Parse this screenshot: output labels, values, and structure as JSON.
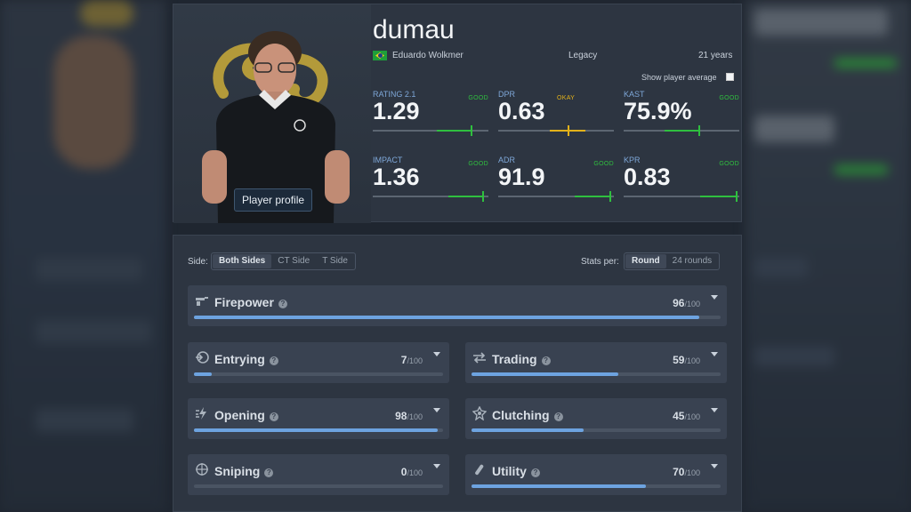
{
  "player": {
    "nickname": "dumau",
    "full_name": "Eduardo Wolkmer",
    "team": "Legacy",
    "age": "21 years",
    "profile_button": "Player profile",
    "show_average_label": "Show player average",
    "show_average_checked": false
  },
  "stats": [
    {
      "label": "RATING 2.1",
      "value": "1.29",
      "rating": "GOOD",
      "level": 0.87
    },
    {
      "label": "DPR",
      "value": "0.63",
      "rating": "OKAY",
      "level": 0.62
    },
    {
      "label": "KAST",
      "value": "75.9%",
      "rating": "GOOD",
      "level": 0.67
    },
    {
      "label": "IMPACT",
      "value": "1.36",
      "rating": "GOOD",
      "level": 0.98
    },
    {
      "label": "ADR",
      "value": "91.9",
      "rating": "GOOD",
      "level": 0.99
    },
    {
      "label": "KPR",
      "value": "0.83",
      "rating": "GOOD",
      "level": 1.0
    }
  ],
  "rating_colors": {
    "GOOD": "#2fbf3f",
    "OKAY": "#e3b21a"
  },
  "filters": {
    "side_label": "Side:",
    "side_options": [
      "Both Sides",
      "CT Side",
      "T Side"
    ],
    "side_selected": "Both Sides",
    "stats_per_label": "Stats per:",
    "per_options": [
      "Round",
      "24 rounds"
    ],
    "per_selected": "Round"
  },
  "categories": [
    {
      "name": "Firepower",
      "icon": "firepower-icon",
      "score": "96",
      "max": "/100",
      "fraction": 0.96
    },
    {
      "name": "Entrying",
      "icon": "entrying-icon",
      "score": "7",
      "max": "/100",
      "fraction": 0.07
    },
    {
      "name": "Trading",
      "icon": "trading-icon",
      "score": "59",
      "max": "/100",
      "fraction": 0.59
    },
    {
      "name": "Opening",
      "icon": "opening-icon",
      "score": "98",
      "max": "/100",
      "fraction": 0.98
    },
    {
      "name": "Clutching",
      "icon": "clutching-icon",
      "score": "45",
      "max": "/100",
      "fraction": 0.45
    },
    {
      "name": "Sniping",
      "icon": "sniping-icon",
      "score": "0",
      "max": "/100",
      "fraction": 0.0
    },
    {
      "name": "Utility",
      "icon": "utility-icon",
      "score": "70",
      "max": "/100",
      "fraction": 0.7
    }
  ],
  "colors": {
    "progress": "#6da3e0",
    "accent_label": "#7ea7d8"
  }
}
